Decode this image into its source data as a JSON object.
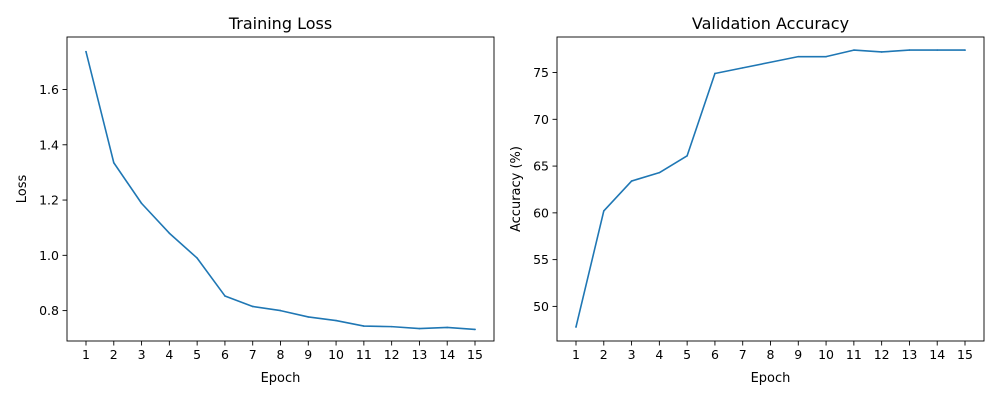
{
  "chart_data": [
    {
      "type": "line",
      "title": "Training Loss",
      "xlabel": "Epoch",
      "ylabel": "Loss",
      "x": [
        1,
        2,
        3,
        4,
        5,
        6,
        7,
        8,
        9,
        10,
        11,
        12,
        13,
        14,
        15
      ],
      "xticks": [
        "1",
        "2",
        "3",
        "4",
        "5",
        "6",
        "7",
        "8",
        "9",
        "10",
        "11",
        "12",
        "13",
        "14",
        "15"
      ],
      "yticks": [
        "0.8",
        "1.0",
        "1.2",
        "1.4",
        "1.6"
      ],
      "ylim": [
        0.69,
        1.79
      ],
      "series": [
        {
          "color": "#1f77b4",
          "values": [
            1.737,
            1.335,
            1.188,
            1.08,
            0.99,
            0.853,
            0.815,
            0.8,
            0.777,
            0.764,
            0.744,
            0.742,
            0.735,
            0.739,
            0.732
          ]
        }
      ]
    },
    {
      "type": "line",
      "title": "Validation Accuracy",
      "xlabel": "Epoch",
      "ylabel": "Accuracy (%)",
      "x": [
        1,
        2,
        3,
        4,
        5,
        6,
        7,
        8,
        9,
        10,
        11,
        12,
        13,
        14,
        15
      ],
      "xticks": [
        "1",
        "2",
        "3",
        "4",
        "5",
        "6",
        "7",
        "8",
        "9",
        "10",
        "11",
        "12",
        "13",
        "14",
        "15"
      ],
      "yticks": [
        "50",
        "55",
        "60",
        "65",
        "70",
        "75"
      ],
      "ylim": [
        46.3,
        78.8
      ],
      "series": [
        {
          "color": "#1f77b4",
          "values": [
            47.8,
            60.2,
            63.4,
            64.3,
            66.1,
            74.9,
            75.5,
            76.1,
            76.7,
            76.7,
            77.4,
            77.2,
            77.4,
            77.4,
            77.4
          ]
        }
      ]
    }
  ]
}
